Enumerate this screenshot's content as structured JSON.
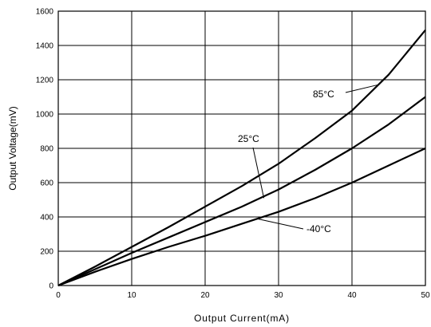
{
  "chart_data": {
    "type": "line",
    "title": "",
    "xlabel": "Output Current(mA)",
    "ylabel": "Output Voltage(mV)",
    "xlim": [
      0,
      50
    ],
    "ylim": [
      0,
      1600
    ],
    "xticks": [
      0,
      10,
      20,
      30,
      40,
      50
    ],
    "yticks": [
      0,
      200,
      400,
      600,
      800,
      1000,
      1200,
      1400,
      1600
    ],
    "grid": true,
    "series": [
      {
        "name": "85°C",
        "x": [
          0,
          5,
          10,
          15,
          20,
          25,
          30,
          35,
          40,
          45,
          50
        ],
        "y": [
          0,
          110,
          225,
          340,
          460,
          580,
          710,
          860,
          1020,
          1230,
          1490
        ]
      },
      {
        "name": "25°C",
        "x": [
          0,
          5,
          10,
          15,
          20,
          25,
          30,
          35,
          40,
          45,
          50
        ],
        "y": [
          0,
          95,
          190,
          280,
          370,
          460,
          560,
          675,
          800,
          940,
          1100
        ]
      },
      {
        "name": "-40°C",
        "x": [
          0,
          5,
          10,
          15,
          20,
          25,
          30,
          35,
          40,
          45,
          50
        ],
        "y": [
          0,
          80,
          155,
          225,
          290,
          360,
          430,
          510,
          600,
          700,
          800
        ]
      }
    ],
    "annotations": [
      {
        "label": "85°C",
        "series": 0,
        "x": 43.5,
        "y": 1170
      },
      {
        "label": "25°C",
        "series": 1,
        "x": 28,
        "y": 510
      },
      {
        "label": "-40°C",
        "series": 2,
        "x": 27,
        "y": 390
      }
    ]
  }
}
